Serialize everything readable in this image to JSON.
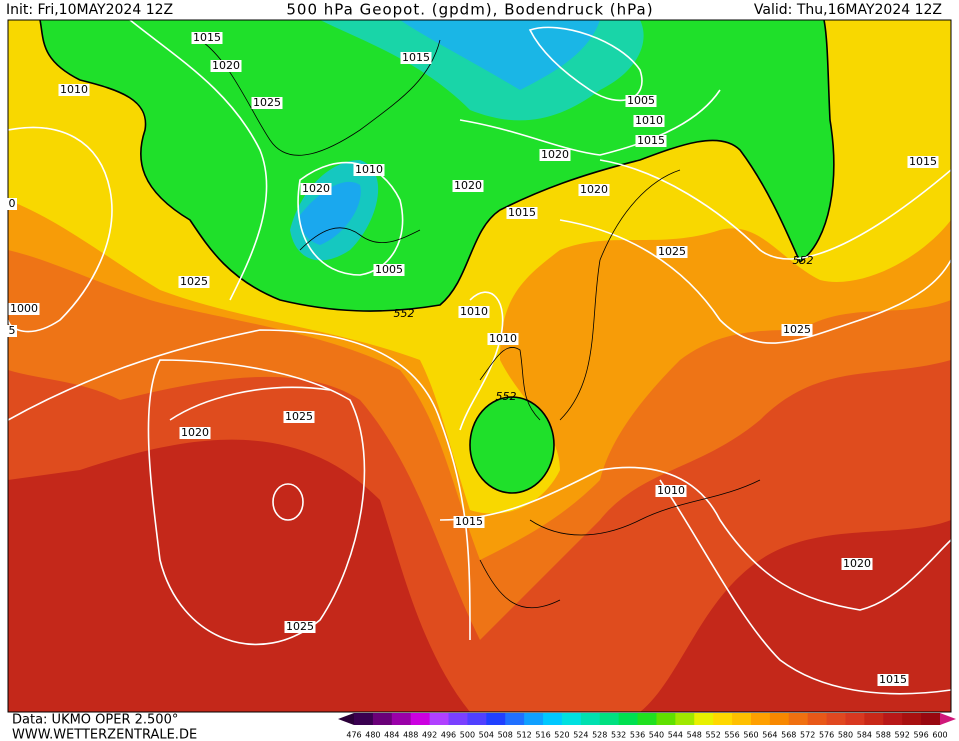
{
  "header": {
    "init": "Init: Fri,10MAY2024 12Z",
    "title": "500 hPa Geopot. (gpdm), Bodendruck (hPa)",
    "valid": "Valid: Thu,16MAY2024 12Z"
  },
  "isobar_labels": [
    "1015",
    "1020",
    "1015",
    "1010",
    "1025",
    "1005",
    "1010",
    "1015",
    "1020",
    "1010",
    "1020",
    "1020",
    "1020",
    "1015",
    "1015",
    "1025",
    "552",
    "1005",
    "1025",
    "1000",
    "552",
    "1010",
    "1025",
    "1010",
    "552",
    "1025",
    "1020",
    "1010",
    "1015",
    "1020",
    "1025",
    "1015",
    "0",
    "5"
  ],
  "footer": {
    "data": "Data: UKMO OPER 2.500°",
    "site": "WWW.WETTERZENTRALE.DE"
  },
  "colorbar": {
    "labels": [
      "476",
      "480",
      "484",
      "488",
      "492",
      "496",
      "500",
      "504",
      "508",
      "512",
      "516",
      "520",
      "524",
      "528",
      "532",
      "536",
      "540",
      "544",
      "548",
      "552",
      "556",
      "560",
      "564",
      "568",
      "572",
      "576",
      "580",
      "584",
      "588",
      "592",
      "596",
      "600"
    ]
  }
}
